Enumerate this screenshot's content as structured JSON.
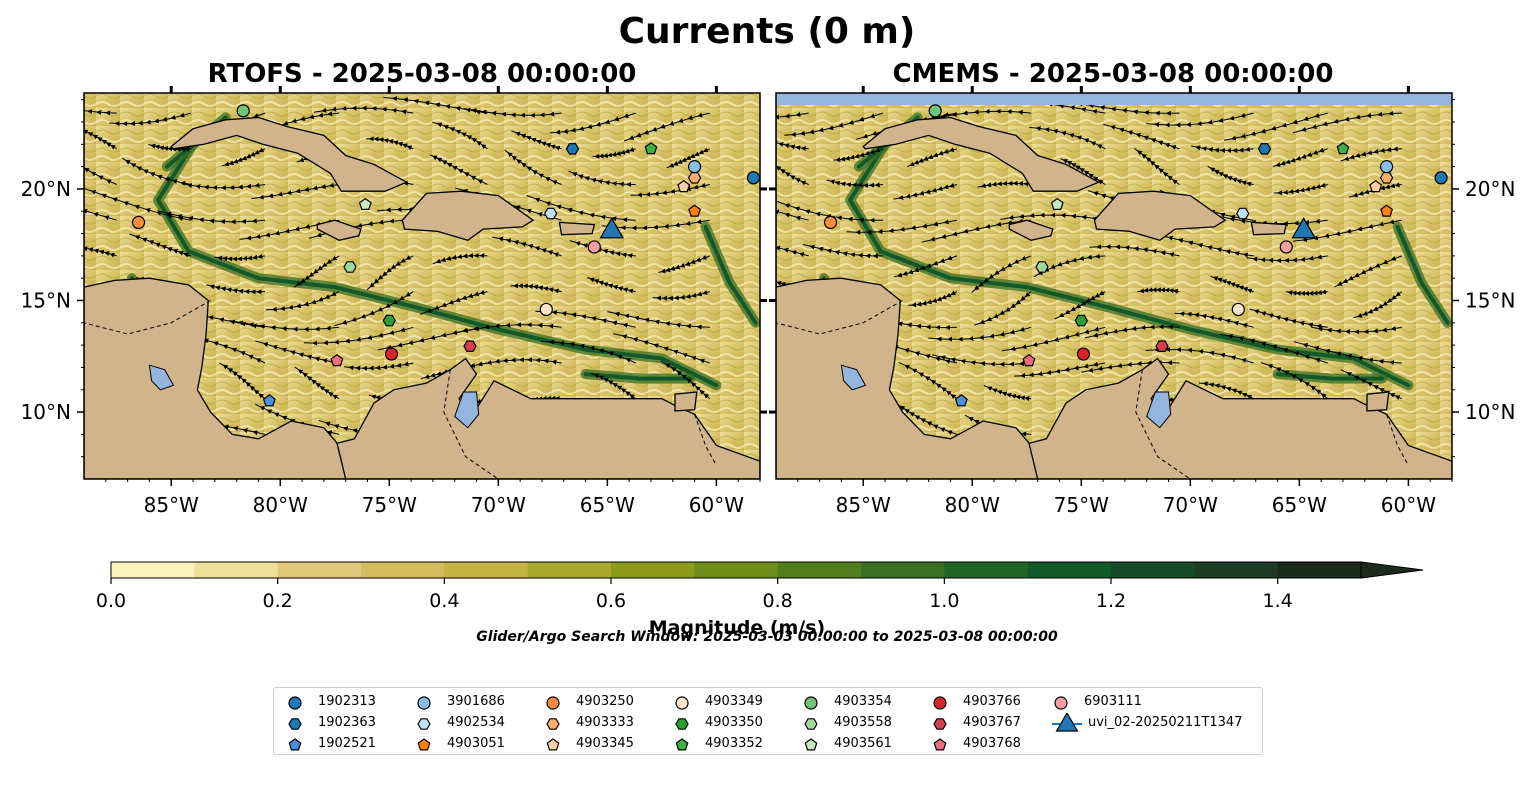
{
  "chart_data": {
    "type": "heatmap",
    "title": "Currents (0 m)",
    "panels": [
      {
        "title": "RTOFS - 2025-03-08 00:00:00",
        "xlim": [
          -89,
          -58
        ],
        "ylim": [
          7,
          24.3
        ]
      },
      {
        "title": "CMEMS - 2025-03-08 00:00:00",
        "xlim": [
          -89,
          -58
        ],
        "ylim": [
          7,
          24.3
        ]
      }
    ],
    "x_ticks": [
      {
        "value": -85,
        "label": "85°W"
      },
      {
        "value": -80,
        "label": "80°W"
      },
      {
        "value": -75,
        "label": "75°W"
      },
      {
        "value": -70,
        "label": "70°W"
      },
      {
        "value": -65,
        "label": "65°W"
      },
      {
        "value": -60,
        "label": "60°W"
      }
    ],
    "y_ticks": [
      {
        "value": 10,
        "label": "10°N"
      },
      {
        "value": 15,
        "label": "15°N"
      },
      {
        "value": 20,
        "label": "20°N"
      }
    ],
    "colorbar": {
      "label": "Magnitude (m/s)",
      "min": 0,
      "max": 1.5,
      "extend": "max",
      "ticks": [
        {
          "value": 0.0,
          "label": "0.0"
        },
        {
          "value": 0.2,
          "label": "0.2"
        },
        {
          "value": 0.4,
          "label": "0.4"
        },
        {
          "value": 0.6,
          "label": "0.6"
        },
        {
          "value": 0.8,
          "label": "0.8"
        },
        {
          "value": 1.0,
          "label": "1.0"
        },
        {
          "value": 1.2,
          "label": "1.2"
        },
        {
          "value": 1.4,
          "label": "1.4"
        }
      ],
      "colors": [
        "#fbf3be",
        "#eedf9a",
        "#e0c97a",
        "#d4bc5e",
        "#c3b444",
        "#a8a82e",
        "#8c9b1c",
        "#6e8c18",
        "#527d1d",
        "#3a6e22",
        "#226326",
        "#12592a",
        "#154a28",
        "#1e3c24",
        "#1a2a1c"
      ]
    },
    "footnote": "Glider/Argo Search Window: 2025-03-03 00:00:00 to 2025-03-08 00:00:00",
    "land_color": "#d2b48c",
    "water_color": "#94b5dd",
    "markers": [
      {
        "id": "1902313",
        "shape": "circle",
        "color": "#1f77b4",
        "rtofs": [
          -58.3,
          20.5
        ],
        "cmems": [
          -58.5,
          20.5
        ]
      },
      {
        "id": "1902363",
        "shape": "hexagon",
        "color": "#1f77b4",
        "rtofs": [
          -66.6,
          21.8
        ],
        "cmems": [
          -66.6,
          21.8
        ]
      },
      {
        "id": "1902521",
        "shape": "pentagon",
        "color": "#4a90d9",
        "rtofs": [
          -80.5,
          10.5
        ],
        "cmems": [
          -80.5,
          10.5
        ]
      },
      {
        "id": "3901686",
        "shape": "circle",
        "color": "#87bde6",
        "rtofs": [
          -61.0,
          21.0
        ],
        "cmems": [
          -61.0,
          21.0
        ]
      },
      {
        "id": "4902534",
        "shape": "hexagon",
        "color": "#bde0f6",
        "rtofs": [
          -67.6,
          18.9
        ],
        "cmems": [
          -67.6,
          18.9
        ]
      },
      {
        "id": "4903051",
        "shape": "pentagon",
        "color": "#ff7f0e",
        "rtofs": [
          -61.0,
          19.0
        ],
        "cmems": [
          -61.0,
          19.0
        ]
      },
      {
        "id": "4903250",
        "shape": "circle",
        "color": "#fd8d3c",
        "rtofs": [
          -86.5,
          18.5
        ],
        "cmems": [
          -86.5,
          18.5
        ]
      },
      {
        "id": "4903333",
        "shape": "hexagon",
        "color": "#fdae6b",
        "rtofs": [
          -61.0,
          20.5
        ],
        "cmems": [
          -61.0,
          20.5
        ]
      },
      {
        "id": "4903345",
        "shape": "pentagon",
        "color": "#fdd0a2",
        "rtofs": [
          -61.5,
          20.1
        ],
        "cmems": [
          -61.5,
          20.1
        ]
      },
      {
        "id": "4903349",
        "shape": "circle",
        "color": "#fee6ce",
        "rtofs": [
          -67.8,
          14.6
        ],
        "cmems": [
          -67.8,
          14.6
        ]
      },
      {
        "id": "4903350",
        "shape": "hexagon",
        "color": "#2ca02c",
        "rtofs": [
          -75.0,
          14.1
        ],
        "cmems": [
          -75.0,
          14.1
        ]
      },
      {
        "id": "4903352",
        "shape": "pentagon",
        "color": "#3cb043",
        "rtofs": [
          -63.0,
          21.8
        ],
        "cmems": [
          -63.0,
          21.8
        ]
      },
      {
        "id": "4903354",
        "shape": "circle",
        "color": "#74c476",
        "rtofs": [
          -81.7,
          23.5
        ],
        "cmems": [
          -81.7,
          23.5
        ]
      },
      {
        "id": "4903558",
        "shape": "hexagon",
        "color": "#a1d99b",
        "rtofs": [
          -76.8,
          16.5
        ],
        "cmems": [
          -76.8,
          16.5
        ]
      },
      {
        "id": "4903561",
        "shape": "pentagon",
        "color": "#c7e9c0",
        "rtofs": [
          -76.1,
          19.3
        ],
        "cmems": [
          -76.1,
          19.3
        ]
      },
      {
        "id": "4903766",
        "shape": "circle",
        "color": "#d62728",
        "rtofs": [
          -74.9,
          12.6
        ],
        "cmems": [
          -74.9,
          12.6
        ]
      },
      {
        "id": "4903767",
        "shape": "hexagon",
        "color": "#d6404e",
        "rtofs": [
          -71.3,
          12.95
        ],
        "cmems": [
          -71.3,
          12.95
        ]
      },
      {
        "id": "4903768",
        "shape": "pentagon",
        "color": "#f06c7a",
        "rtofs": [
          -77.4,
          12.3
        ],
        "cmems": [
          -77.4,
          12.3
        ]
      },
      {
        "id": "6903111",
        "shape": "circle",
        "color": "#f4a0a0",
        "rtofs": [
          -65.6,
          17.4
        ],
        "cmems": [
          -65.6,
          17.4
        ]
      },
      {
        "id": "uvi_02-20250211T1347",
        "shape": "triangle",
        "color": "#1f77b4",
        "rtofs": [
          -64.8,
          18.1
        ],
        "cmems": [
          -64.8,
          18.1
        ]
      }
    ]
  }
}
